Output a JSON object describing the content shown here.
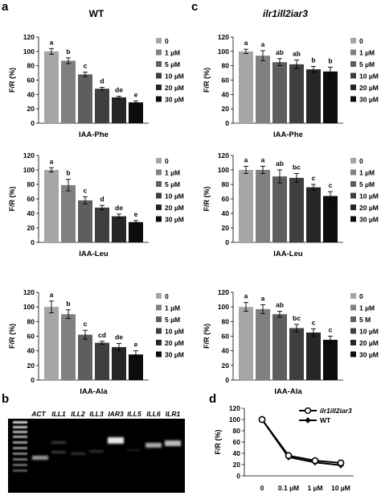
{
  "figure": {
    "panel_labels": [
      "a",
      "b",
      "c",
      "d"
    ],
    "panel_a_title": "WT",
    "panel_c_title": "ilr1ill2iar3",
    "legend_doses": [
      "0",
      "1 µM",
      "5 µM",
      "10 µM",
      "20 µM",
      "30 µM"
    ],
    "legend_doses_alt": [
      "0",
      "1 µM",
      "5 M",
      "10 µM",
      "20 µM",
      "30 µM"
    ],
    "dose_colors": [
      "#a6a6a6",
      "#808080",
      "#5e5e5e",
      "#3f3f3f",
      "#262626",
      "#0c0c0c"
    ]
  },
  "chart_data": [
    {
      "id": "a1",
      "panel": "a",
      "type": "bar",
      "xlabel": "IAA-Phe",
      "ylabel": "F/R (%)",
      "ylim": [
        0,
        120
      ],
      "yticks": [
        0,
        20,
        40,
        60,
        80,
        100,
        120
      ],
      "categories": [
        "0",
        "1 µM",
        "5 µM",
        "10 µM",
        "20 µM",
        "30 µM"
      ],
      "values": [
        100,
        87,
        68,
        48,
        36,
        29
      ],
      "errors": [
        4,
        4,
        3,
        2,
        1.5,
        2
      ],
      "letters": [
        "a",
        "b",
        "c",
        "d",
        "de",
        "e"
      ]
    },
    {
      "id": "a2",
      "panel": "a",
      "type": "bar",
      "xlabel": "IAA-Leu",
      "ylabel": "F/R (%)",
      "ylim": [
        0,
        120
      ],
      "yticks": [
        0,
        20,
        40,
        60,
        80,
        100,
        120
      ],
      "categories": [
        "0",
        "1 µM",
        "5 µM",
        "10 µM",
        "20 µM",
        "30 µM"
      ],
      "values": [
        100,
        79,
        58,
        48,
        36,
        28
      ],
      "errors": [
        3,
        8,
        5,
        3,
        3,
        2
      ],
      "letters": [
        "a",
        "b",
        "c",
        "d",
        "de",
        "e"
      ]
    },
    {
      "id": "a3",
      "panel": "a",
      "type": "bar",
      "xlabel": "IAA-Ala",
      "ylabel": "F/R (%)",
      "ylim": [
        0,
        120
      ],
      "yticks": [
        0,
        20,
        40,
        60,
        80,
        100,
        120
      ],
      "categories": [
        "0",
        "1 µM",
        "5 µM",
        "10 µM",
        "20 µM",
        "30 µM"
      ],
      "values": [
        100,
        90,
        62,
        51,
        45,
        35
      ],
      "errors": [
        8,
        6,
        6,
        2,
        5,
        5
      ],
      "letters": [
        "a",
        "b",
        "c",
        "cd",
        "de",
        "e"
      ]
    },
    {
      "id": "c1",
      "panel": "c",
      "type": "bar",
      "xlabel": "IAA-Phe",
      "ylabel": "F/R (%)",
      "ylim": [
        0,
        120
      ],
      "yticks": [
        0,
        20,
        40,
        60,
        80,
        100,
        120
      ],
      "categories": [
        "0",
        "1 µM",
        "5 µM",
        "10 µM",
        "20 µM",
        "30 µM"
      ],
      "values": [
        100,
        94,
        85,
        82,
        75,
        72
      ],
      "errors": [
        3,
        7,
        5,
        6,
        4,
        6
      ],
      "letters": [
        "a",
        "a",
        "ab",
        "ab",
        "b",
        "b"
      ]
    },
    {
      "id": "c2",
      "panel": "c",
      "type": "bar",
      "xlabel": "IAA-Leu",
      "ylabel": "F/R (%)",
      "ylim": [
        0,
        120
      ],
      "yticks": [
        0,
        20,
        40,
        60,
        80,
        100,
        120
      ],
      "categories": [
        "0",
        "1 µM",
        "5 µM",
        "10 µM",
        "20 µM",
        "30 µM"
      ],
      "values": [
        100,
        100,
        91,
        89,
        76,
        64
      ],
      "errors": [
        5,
        5,
        9,
        6,
        4,
        6
      ],
      "letters": [
        "a",
        "a",
        "ab",
        "bc",
        "c",
        "c"
      ]
    },
    {
      "id": "c3",
      "panel": "c",
      "type": "bar",
      "xlabel": "IAA-Ala",
      "ylabel": "F/R (%)",
      "ylim": [
        0,
        120
      ],
      "yticks": [
        0,
        20,
        40,
        60,
        80,
        100,
        120
      ],
      "categories": [
        "0",
        "1 µM",
        "5 M",
        "10 µM",
        "20 µM",
        "30 µM"
      ],
      "values": [
        100,
        97,
        90,
        71,
        65,
        55
      ],
      "errors": [
        6,
        6,
        4,
        5,
        5,
        5
      ],
      "letters": [
        "a",
        "a",
        "ab",
        "bc",
        "c",
        "c"
      ]
    },
    {
      "id": "d",
      "panel": "d",
      "type": "line",
      "ylabel": "F/R (%)",
      "ylim": [
        0,
        120
      ],
      "yticks": [
        0,
        20,
        40,
        60,
        80,
        100,
        120
      ],
      "categories": [
        "0",
        "0.1 µM",
        "1 µM",
        "10 µM"
      ],
      "series": [
        {
          "name": "ilr1ill2iar3",
          "values": [
            100,
            36,
            27,
            23
          ],
          "marker": "open-circle"
        },
        {
          "name": "WT",
          "values": [
            100,
            33,
            24,
            19
          ],
          "marker": "filled-diamond"
        }
      ]
    }
  ],
  "gel": {
    "panel": "b",
    "lanes": [
      "ACT",
      "ILL1",
      "ILL2",
      "ILL3",
      "IAR3",
      "ILL5",
      "ILL6",
      "ILR1"
    ]
  }
}
